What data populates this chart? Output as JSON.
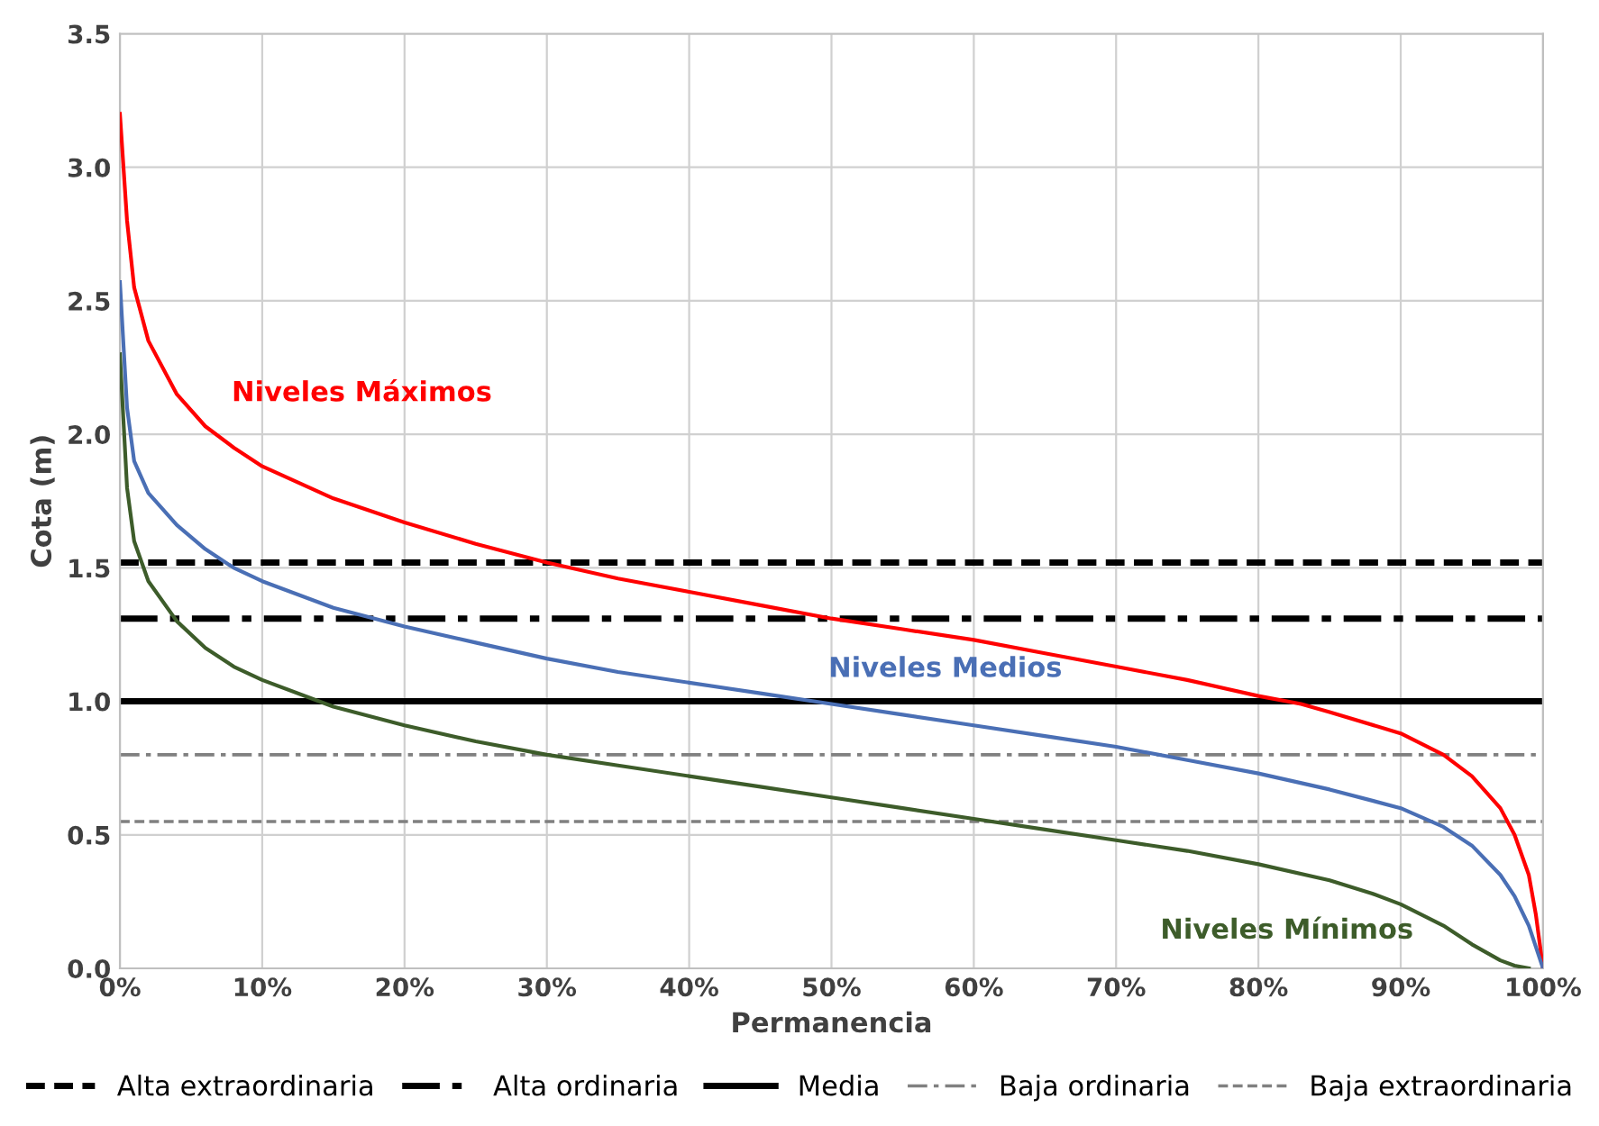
{
  "chart_data": {
    "type": "line",
    "xlabel": "Permanencia",
    "ylabel": "Cota (m)",
    "xlim": [
      0,
      100
    ],
    "ylim": [
      0,
      3.5
    ],
    "xticks": [
      {
        "value": 0,
        "label": "0%"
      },
      {
        "value": 10,
        "label": "10%"
      },
      {
        "value": 20,
        "label": "20%"
      },
      {
        "value": 30,
        "label": "30%"
      },
      {
        "value": 40,
        "label": "40%"
      },
      {
        "value": 50,
        "label": "50%"
      },
      {
        "value": 60,
        "label": "60%"
      },
      {
        "value": 70,
        "label": "70%"
      },
      {
        "value": 80,
        "label": "80%"
      },
      {
        "value": 90,
        "label": "90%"
      },
      {
        "value": 100,
        "label": "100%"
      }
    ],
    "yticks": [
      {
        "value": 0,
        "label": "0.0"
      },
      {
        "value": 0.5,
        "label": "0.5"
      },
      {
        "value": 1,
        "label": "1.0"
      },
      {
        "value": 1.5,
        "label": "1.5"
      },
      {
        "value": 2,
        "label": "2.0"
      },
      {
        "value": 2.5,
        "label": "2.5"
      },
      {
        "value": 3,
        "label": "3.0"
      },
      {
        "value": 3.5,
        "label": "3.5"
      }
    ],
    "grid": true,
    "legend": "bottom",
    "marker": "none",
    "line_style": "solid",
    "series": [
      {
        "name": "Niveles Máximos",
        "color": "#ff0000",
        "x": [
          0,
          0.5,
          1,
          2,
          4,
          6,
          8,
          10,
          15,
          20,
          25,
          30,
          35,
          40,
          45,
          50,
          55,
          60,
          65,
          70,
          75,
          80,
          83,
          85,
          90,
          93,
          95,
          97,
          98,
          99,
          99.5,
          100
        ],
        "values": [
          3.2,
          2.8,
          2.55,
          2.35,
          2.15,
          2.03,
          1.95,
          1.88,
          1.76,
          1.67,
          1.59,
          1.52,
          1.46,
          1.41,
          1.36,
          1.31,
          1.27,
          1.23,
          1.18,
          1.13,
          1.08,
          1.02,
          0.99,
          0.96,
          0.88,
          0.8,
          0.72,
          0.6,
          0.5,
          0.35,
          0.2,
          0.0
        ]
      },
      {
        "name": "Niveles Medios",
        "color": "#4a6fb5",
        "x": [
          0,
          0.5,
          1,
          2,
          4,
          6,
          8,
          10,
          15,
          20,
          25,
          30,
          35,
          40,
          45,
          50,
          55,
          60,
          65,
          70,
          75,
          80,
          85,
          90,
          93,
          95,
          97,
          98,
          99,
          100
        ],
        "values": [
          2.57,
          2.1,
          1.9,
          1.78,
          1.66,
          1.57,
          1.5,
          1.45,
          1.35,
          1.28,
          1.22,
          1.16,
          1.11,
          1.07,
          1.03,
          0.99,
          0.95,
          0.91,
          0.87,
          0.83,
          0.78,
          0.73,
          0.67,
          0.6,
          0.53,
          0.46,
          0.35,
          0.27,
          0.16,
          0.0
        ]
      },
      {
        "name": "Niveles Mínimos",
        "color": "#3d5c2a",
        "x": [
          0,
          0.5,
          1,
          2,
          4,
          6,
          8,
          10,
          15,
          20,
          25,
          30,
          35,
          40,
          45,
          50,
          55,
          60,
          65,
          70,
          75,
          80,
          85,
          88,
          90,
          93,
          95,
          97,
          98,
          99
        ],
        "values": [
          2.3,
          1.8,
          1.6,
          1.45,
          1.3,
          1.2,
          1.13,
          1.08,
          0.98,
          0.91,
          0.85,
          0.8,
          0.76,
          0.72,
          0.68,
          0.64,
          0.6,
          0.56,
          0.52,
          0.48,
          0.44,
          0.39,
          0.33,
          0.28,
          0.24,
          0.16,
          0.09,
          0.03,
          0.01,
          0.0
        ]
      }
    ],
    "ref_lines": [
      {
        "axis": "y",
        "value": 1.52,
        "label": "Alta extraordinaria",
        "color": "#000000",
        "line_style": "dashed"
      },
      {
        "axis": "y",
        "value": 1.31,
        "label": "Alta ordinaria",
        "color": "#000000",
        "line_style": "dashdot"
      },
      {
        "axis": "y",
        "value": 1.0,
        "label": "Media",
        "color": "#000000",
        "line_style": "solid"
      },
      {
        "axis": "y",
        "value": 0.8,
        "label": "Baja ordinaria",
        "color": "#808080",
        "line_style": "dashdot"
      },
      {
        "axis": "y",
        "value": 0.55,
        "label": "Baja extraordinaria",
        "color": "#808080",
        "line_style": "dashed"
      }
    ]
  }
}
